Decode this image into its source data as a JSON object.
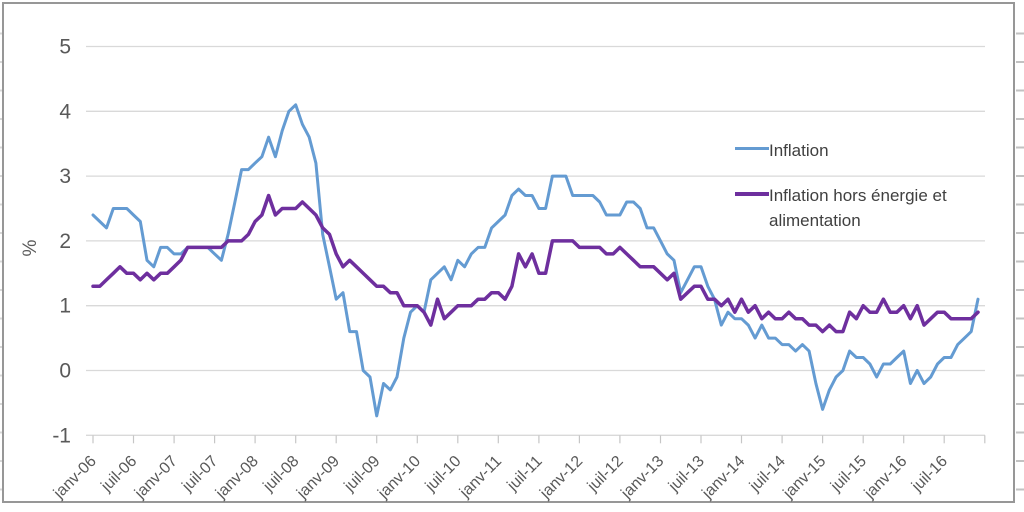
{
  "figure": {
    "ylabel": "%",
    "legend": [
      {
        "label": "Inflation",
        "color": "#649BD2"
      },
      {
        "label": "Inflation hors énergie et alimentation",
        "color": "#6E2F9E"
      }
    ]
  },
  "chart_data": {
    "type": "line",
    "frequency": "monthly",
    "start": "janv-06",
    "points": 132,
    "ylabel": "%",
    "ylim": [
      -1,
      5
    ],
    "grid": "horizontal",
    "legend_position": "inside-right",
    "y_ticks": [
      5,
      4,
      3,
      2,
      1,
      0,
      -1
    ],
    "x_tick_labels": [
      "janv-06",
      "juil-06",
      "janv-07",
      "juil-07",
      "janv-08",
      "juil-08",
      "janv-09",
      "juil-09",
      "janv-10",
      "juil-10",
      "janv-11",
      "juil-11",
      "janv-12",
      "juil-12",
      "janv-13",
      "juil-13",
      "janv-14",
      "juil-14",
      "janv-15",
      "juil-15",
      "janv-16",
      "juil-16"
    ],
    "x_tick_interval_months": 6,
    "series": [
      {
        "name": "Inflation",
        "color": "#649BD2",
        "values": [
          2.4,
          2.3,
          2.2,
          2.5,
          2.5,
          2.5,
          2.4,
          2.3,
          1.7,
          1.6,
          1.9,
          1.9,
          1.8,
          1.8,
          1.9,
          1.9,
          1.9,
          1.9,
          1.8,
          1.7,
          2.1,
          2.6,
          3.1,
          3.1,
          3.2,
          3.3,
          3.6,
          3.3,
          3.7,
          4.0,
          4.1,
          3.8,
          3.6,
          3.2,
          2.1,
          1.6,
          1.1,
          1.2,
          0.6,
          0.6,
          0.0,
          -0.1,
          -0.7,
          -0.2,
          -0.3,
          -0.1,
          0.5,
          0.9,
          1.0,
          0.9,
          1.4,
          1.5,
          1.6,
          1.4,
          1.7,
          1.6,
          1.8,
          1.9,
          1.9,
          2.2,
          2.3,
          2.4,
          2.7,
          2.8,
          2.7,
          2.7,
          2.5,
          2.5,
          3.0,
          3.0,
          3.0,
          2.7,
          2.7,
          2.7,
          2.7,
          2.6,
          2.4,
          2.4,
          2.4,
          2.6,
          2.6,
          2.5,
          2.2,
          2.2,
          2.0,
          1.8,
          1.7,
          1.2,
          1.4,
          1.6,
          1.6,
          1.3,
          1.1,
          0.7,
          0.9,
          0.8,
          0.8,
          0.7,
          0.5,
          0.7,
          0.5,
          0.5,
          0.4,
          0.4,
          0.3,
          0.4,
          0.3,
          -0.2,
          -0.6,
          -0.3,
          -0.1,
          0.0,
          0.3,
          0.2,
          0.2,
          0.1,
          -0.1,
          0.1,
          0.1,
          0.2,
          0.3,
          -0.2,
          0.0,
          -0.2,
          -0.1,
          0.1,
          0.2,
          0.2,
          0.4,
          0.5,
          0.6,
          1.1
        ]
      },
      {
        "name": "Inflation hors énergie et alimentation",
        "color": "#6E2F9E",
        "values": [
          1.3,
          1.3,
          1.4,
          1.5,
          1.6,
          1.5,
          1.5,
          1.4,
          1.5,
          1.4,
          1.5,
          1.5,
          1.6,
          1.7,
          1.9,
          1.9,
          1.9,
          1.9,
          1.9,
          1.9,
          2.0,
          2.0,
          2.0,
          2.1,
          2.3,
          2.4,
          2.7,
          2.4,
          2.5,
          2.5,
          2.5,
          2.6,
          2.5,
          2.4,
          2.2,
          2.1,
          1.8,
          1.6,
          1.7,
          1.6,
          1.5,
          1.4,
          1.3,
          1.3,
          1.2,
          1.2,
          1.0,
          1.0,
          1.0,
          0.9,
          0.7,
          1.1,
          0.8,
          0.9,
          1.0,
          1.0,
          1.0,
          1.1,
          1.1,
          1.2,
          1.2,
          1.1,
          1.3,
          1.8,
          1.6,
          1.8,
          1.5,
          1.5,
          2.0,
          2.0,
          2.0,
          2.0,
          1.9,
          1.9,
          1.9,
          1.9,
          1.8,
          1.8,
          1.9,
          1.8,
          1.7,
          1.6,
          1.6,
          1.6,
          1.5,
          1.4,
          1.5,
          1.1,
          1.2,
          1.3,
          1.3,
          1.1,
          1.1,
          1.0,
          1.1,
          0.9,
          1.1,
          0.9,
          1.0,
          0.8,
          0.9,
          0.8,
          0.8,
          0.9,
          0.8,
          0.8,
          0.7,
          0.7,
          0.6,
          0.7,
          0.6,
          0.6,
          0.9,
          0.8,
          1.0,
          0.9,
          0.9,
          1.1,
          0.9,
          0.9,
          1.0,
          0.8,
          1.0,
          0.7,
          0.8,
          0.9,
          0.9,
          0.8,
          0.8,
          0.8,
          0.8,
          0.9
        ]
      }
    ],
    "style": {
      "gridline_color": "#D9D9D9",
      "axis_text_color": "#595959",
      "legend_text_color": "#404040",
      "frame_color": "#979797"
    }
  }
}
